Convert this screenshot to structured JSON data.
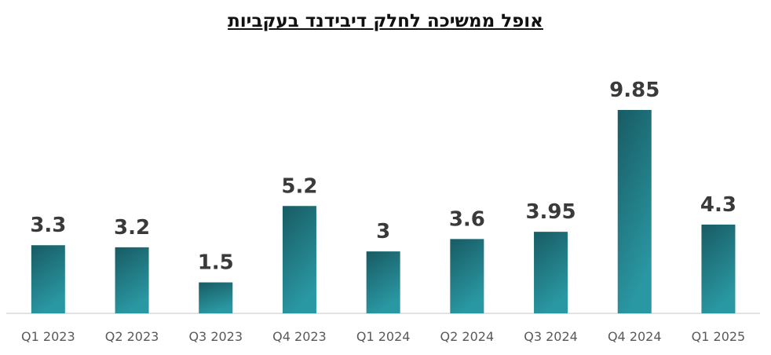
{
  "chart_data": {
    "type": "bar",
    "title": "אופל ממשיכה לחלק דיבידנד בעקביות",
    "categories": [
      "Q1 2023",
      "Q2 2023",
      "Q3 2023",
      "Q4 2023",
      "Q1 2024",
      "Q2 2024",
      "Q3 2024",
      "Q4 2024",
      "Q1 2025"
    ],
    "values": [
      3.3,
      3.2,
      1.5,
      5.2,
      3,
      3.6,
      3.95,
      9.85,
      4.3
    ],
    "value_labels": [
      "3.3",
      "3.2",
      "1.5",
      "5.2",
      "3",
      "3.6",
      "3.95",
      "9.85",
      "4.3"
    ],
    "xlabel": "",
    "ylabel": "",
    "ylim": [
      0,
      11
    ],
    "grid": false,
    "legend": "none",
    "colors": {
      "bar_top": "#185b63",
      "bar_bottom": "#2a98a3",
      "axis": "#d9d9d9"
    }
  }
}
